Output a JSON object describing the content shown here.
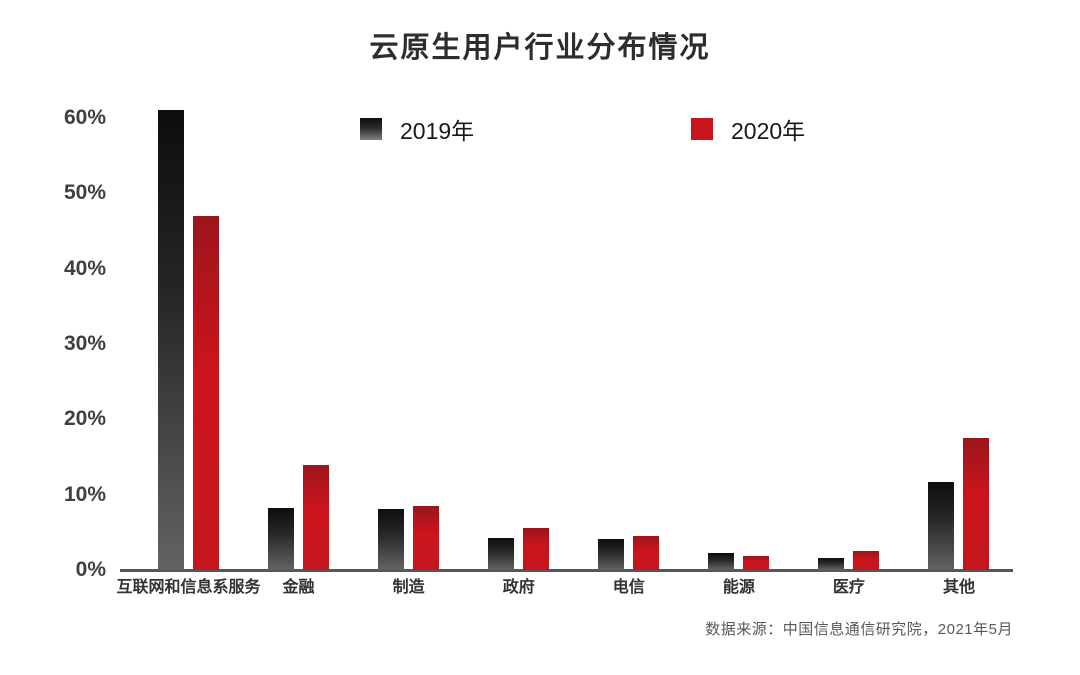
{
  "title": "云原生用户行业分布情况",
  "legend": {
    "items": [
      {
        "label": "2019年",
        "color": "#1a1a1a"
      },
      {
        "label": "2020年",
        "color": "#c8151c"
      }
    ]
  },
  "source_note": "数据来源：中国信息通信研究院，2021年5月",
  "colors": {
    "bar_2019_top": "#0d0d0d",
    "bar_2019_bottom": "#636363",
    "bar_2020_top": "#9c151b",
    "bar_2020_main": "#cd141d",
    "axis": "#57575a",
    "title_text": "#2d2d2d",
    "tick_text": "#3f3f3f"
  },
  "chart_data": {
    "type": "bar",
    "title": "云原生用户行业分布情况",
    "categories": [
      "互联网和信息系服务",
      "金融",
      "制造",
      "政府",
      "电信",
      "能源",
      "医疗",
      "其他"
    ],
    "series": [
      {
        "name": "2019年",
        "values": [
          61,
          8.2,
          8.1,
          4.2,
          4.1,
          2.3,
          1.6,
          11.7
        ]
      },
      {
        "name": "2020年",
        "values": [
          47,
          14,
          8.5,
          5.6,
          4.5,
          1.9,
          2.5,
          17.5
        ]
      }
    ],
    "xlabel": "",
    "ylabel": "",
    "ylim": [
      0,
      60
    ],
    "yticks": [
      "0%",
      "10%",
      "20%",
      "30%",
      "40%",
      "50%",
      "60%"
    ],
    "unit": "%",
    "grid": false,
    "legend_position": "top"
  }
}
